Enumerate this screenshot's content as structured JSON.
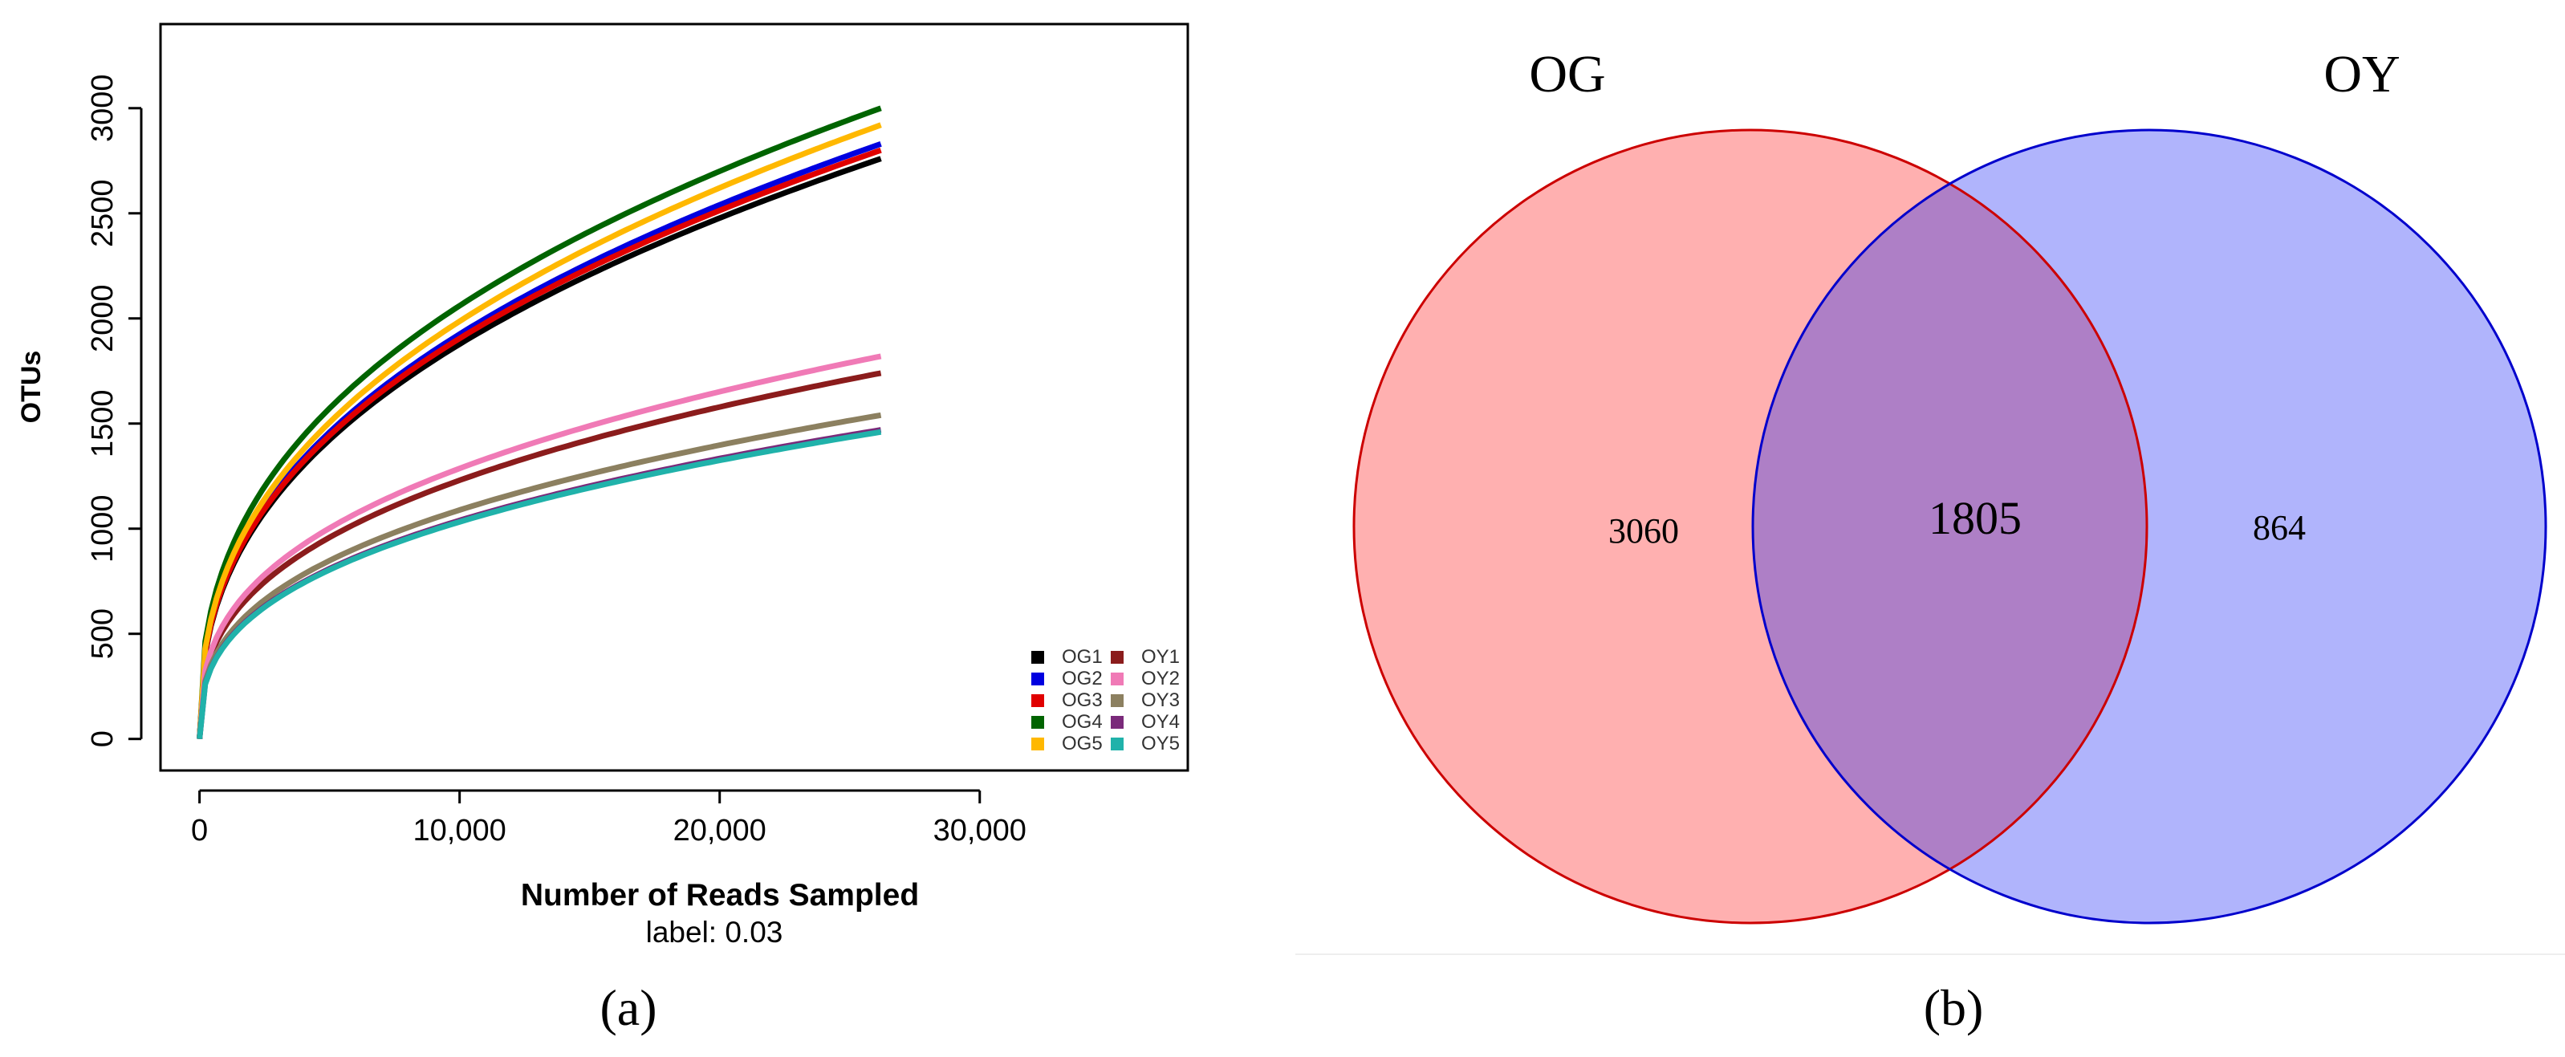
{
  "chart_data": [
    {
      "panel": "(a)",
      "type": "line",
      "title": "",
      "xlabel": "Number of Reads Sampled",
      "subtitle": "label: 0.03",
      "ylabel": "OTUs",
      "xlim": [
        -1500,
        38000
      ],
      "ylim": [
        -150,
        3400
      ],
      "xticks": [
        0,
        10000,
        20000,
        30000
      ],
      "xtick_labels": [
        "0",
        "10,000",
        "20,000",
        "30,000"
      ],
      "yticks": [
        0,
        500,
        1000,
        1500,
        2000,
        2500,
        3000
      ],
      "ytick_labels": [
        "0",
        "500",
        "1000",
        "1500",
        "2000",
        "2500",
        "3000"
      ],
      "x_max": 26200,
      "legend_position": "bottom-right",
      "series": [
        {
          "name": "OG1",
          "color": "#000000",
          "final": 2760,
          "exponent": 0.4
        },
        {
          "name": "OG2",
          "color": "#0000e0",
          "final": 2830,
          "exponent": 0.4
        },
        {
          "name": "OG3",
          "color": "#e00000",
          "final": 2800,
          "exponent": 0.4
        },
        {
          "name": "OG4",
          "color": "#006400",
          "final": 3000,
          "exponent": 0.39
        },
        {
          "name": "OG5",
          "color": "#ffb800",
          "final": 2920,
          "exponent": 0.4
        },
        {
          "name": "OY1",
          "color": "#8b1c1c",
          "final": 1740,
          "exponent": 0.36
        },
        {
          "name": "OY2",
          "color": "#f07ab6",
          "final": 1820,
          "exponent": 0.36
        },
        {
          "name": "OY3",
          "color": "#8c8060",
          "final": 1540,
          "exponent": 0.36
        },
        {
          "name": "OY4",
          "color": "#7a2a7a",
          "final": 1470,
          "exponent": 0.36
        },
        {
          "name": "OY5",
          "color": "#20b2aa",
          "final": 1460,
          "exponent": 0.36
        }
      ]
    },
    {
      "panel": "(b)",
      "type": "venn",
      "sets": [
        {
          "name": "OG",
          "only": 3060,
          "fill": "#ffb0b0",
          "stroke": "#cc0000"
        },
        {
          "name": "OY",
          "only": 864,
          "fill": "#b0b4fc",
          "stroke": "#0000cc"
        }
      ],
      "intersection": 1805,
      "intersection_fill": "#ae7fc6"
    }
  ]
}
